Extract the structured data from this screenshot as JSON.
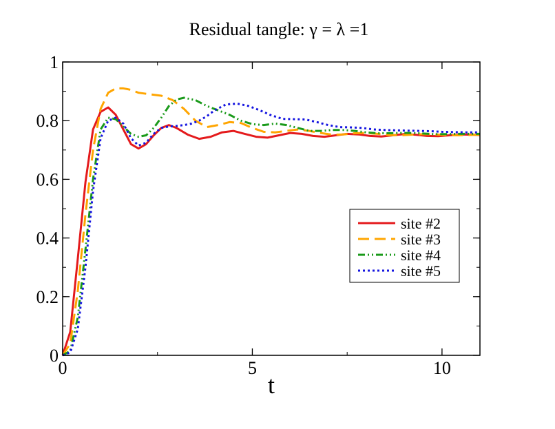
{
  "chart_data": {
    "type": "line",
    "title": "Residual tangle: γ = λ =1",
    "xlabel": "t",
    "ylabel": "",
    "xlim": [
      0,
      11
    ],
    "ylim": [
      0,
      1
    ],
    "x_ticks": [
      {
        "value": 0,
        "label": "0"
      },
      {
        "value": 5,
        "label": "5"
      },
      {
        "value": 10,
        "label": "10"
      }
    ],
    "y_ticks": [
      {
        "value": 0,
        "label": "0"
      },
      {
        "value": 0.2,
        "label": "0.2"
      },
      {
        "value": 0.4,
        "label": "0.4"
      },
      {
        "value": 0.6,
        "label": "0.6"
      },
      {
        "value": 0.8,
        "label": "0.8"
      },
      {
        "value": 1,
        "label": "1"
      }
    ],
    "x_minor_step": 2.5,
    "y_minor_step": 0.1,
    "grid": false,
    "legend_position": "center-right",
    "series": [
      {
        "name": "site #2",
        "color": "#e41a1c",
        "dash": "solid",
        "x": [
          0,
          0.2,
          0.4,
          0.6,
          0.8,
          1.0,
          1.2,
          1.4,
          1.6,
          1.8,
          2.0,
          2.2,
          2.4,
          2.6,
          2.8,
          3.0,
          3.3,
          3.6,
          3.9,
          4.2,
          4.5,
          4.8,
          5.1,
          5.4,
          5.7,
          6.0,
          6.3,
          6.6,
          6.9,
          7.2,
          7.5,
          7.8,
          8.1,
          8.4,
          8.7,
          9.0,
          9.3,
          9.6,
          9.9,
          10.2,
          10.5,
          10.8,
          11.0
        ],
        "y": [
          0.0,
          0.08,
          0.33,
          0.59,
          0.77,
          0.83,
          0.845,
          0.82,
          0.77,
          0.72,
          0.705,
          0.72,
          0.75,
          0.775,
          0.785,
          0.775,
          0.752,
          0.738,
          0.745,
          0.76,
          0.765,
          0.755,
          0.745,
          0.742,
          0.75,
          0.758,
          0.755,
          0.748,
          0.745,
          0.75,
          0.755,
          0.753,
          0.748,
          0.746,
          0.75,
          0.754,
          0.752,
          0.748,
          0.747,
          0.75,
          0.753,
          0.752,
          0.751
        ]
      },
      {
        "name": "site #3",
        "color": "#ffa500",
        "dash": "long-dash",
        "x": [
          0,
          0.2,
          0.4,
          0.6,
          0.8,
          1.0,
          1.2,
          1.4,
          1.6,
          1.8,
          2.0,
          2.3,
          2.6,
          2.9,
          3.2,
          3.5,
          3.8,
          4.1,
          4.4,
          4.7,
          5.0,
          5.3,
          5.6,
          5.9,
          6.2,
          6.5,
          6.8,
          7.1,
          7.4,
          7.7,
          8.0,
          8.3,
          8.6,
          8.9,
          9.2,
          9.5,
          9.8,
          10.1,
          10.4,
          10.7,
          11.0
        ],
        "y": [
          0.0,
          0.04,
          0.22,
          0.48,
          0.7,
          0.84,
          0.895,
          0.91,
          0.91,
          0.905,
          0.895,
          0.89,
          0.885,
          0.87,
          0.84,
          0.8,
          0.778,
          0.785,
          0.795,
          0.792,
          0.775,
          0.762,
          0.76,
          0.765,
          0.77,
          0.765,
          0.758,
          0.752,
          0.753,
          0.757,
          0.758,
          0.755,
          0.751,
          0.75,
          0.752,
          0.754,
          0.753,
          0.751,
          0.75,
          0.751,
          0.752
        ]
      },
      {
        "name": "site #4",
        "color": "#1a9a1a",
        "dash": "dash-dot-dot",
        "x": [
          0,
          0.2,
          0.4,
          0.6,
          0.8,
          1.0,
          1.2,
          1.4,
          1.6,
          1.8,
          2.0,
          2.2,
          2.4,
          2.6,
          2.8,
          3.0,
          3.2,
          3.5,
          3.8,
          4.1,
          4.4,
          4.7,
          5.0,
          5.3,
          5.6,
          5.9,
          6.2,
          6.5,
          6.8,
          7.1,
          7.4,
          7.7,
          8.0,
          8.3,
          8.6,
          8.9,
          9.2,
          9.5,
          9.8,
          10.1,
          10.4,
          10.7,
          11.0
        ],
        "y": [
          0.0,
          0.015,
          0.13,
          0.36,
          0.6,
          0.77,
          0.81,
          0.805,
          0.78,
          0.755,
          0.745,
          0.75,
          0.775,
          0.81,
          0.85,
          0.872,
          0.878,
          0.87,
          0.85,
          0.835,
          0.82,
          0.8,
          0.788,
          0.785,
          0.79,
          0.785,
          0.775,
          0.765,
          0.765,
          0.768,
          0.768,
          0.765,
          0.76,
          0.757,
          0.757,
          0.758,
          0.758,
          0.756,
          0.754,
          0.754,
          0.755,
          0.755,
          0.755
        ]
      },
      {
        "name": "site #5",
        "color": "#1515e0",
        "dash": "dotted",
        "x": [
          0,
          0.2,
          0.4,
          0.6,
          0.8,
          1.0,
          1.2,
          1.4,
          1.6,
          1.8,
          2.0,
          2.2,
          2.4,
          2.6,
          2.8,
          3.0,
          3.2,
          3.4,
          3.6,
          3.8,
          4.0,
          4.3,
          4.6,
          4.9,
          5.2,
          5.5,
          5.8,
          6.1,
          6.4,
          6.7,
          7.0,
          7.3,
          7.6,
          7.9,
          8.2,
          8.5,
          8.8,
          9.1,
          9.4,
          9.7,
          10.0,
          10.3,
          10.6,
          11.0
        ],
        "y": [
          0.0,
          0.01,
          0.09,
          0.3,
          0.56,
          0.74,
          0.8,
          0.81,
          0.79,
          0.74,
          0.715,
          0.725,
          0.755,
          0.775,
          0.78,
          0.782,
          0.785,
          0.79,
          0.8,
          0.815,
          0.835,
          0.855,
          0.858,
          0.85,
          0.835,
          0.818,
          0.806,
          0.805,
          0.804,
          0.795,
          0.785,
          0.778,
          0.777,
          0.775,
          0.77,
          0.768,
          0.767,
          0.766,
          0.765,
          0.764,
          0.762,
          0.761,
          0.76,
          0.76
        ]
      }
    ]
  }
}
